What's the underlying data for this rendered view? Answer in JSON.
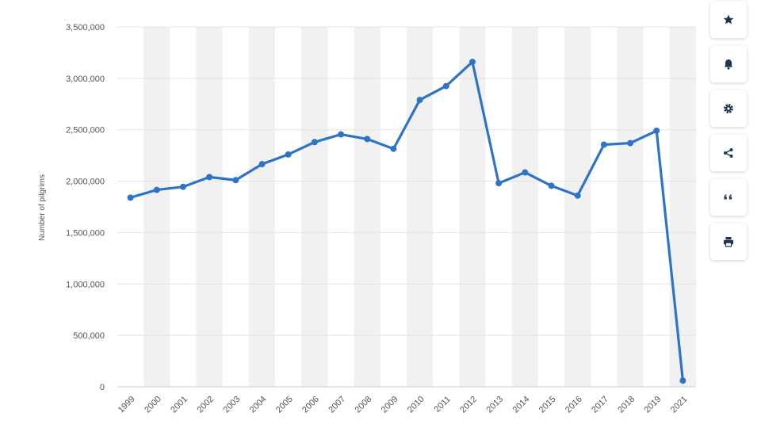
{
  "chart_data": {
    "type": "line",
    "title": "",
    "xlabel": "",
    "ylabel": "Number of pilgrims",
    "ylim": [
      0,
      3500000
    ],
    "yticks": [
      "0",
      "500,000",
      "1,000,000",
      "1,500,000",
      "2,000,000",
      "2,500,000",
      "3,000,000",
      "3,500,000"
    ],
    "ytick_values": [
      0,
      500000,
      1000000,
      1500000,
      2000000,
      2500000,
      3000000,
      3500000
    ],
    "categories": [
      "1999",
      "2000",
      "2001",
      "2002",
      "2003",
      "2004",
      "2005",
      "2006",
      "2007",
      "2008",
      "2009",
      "2010",
      "2011",
      "2012",
      "2013",
      "2014",
      "2015",
      "2016",
      "2017",
      "2018",
      "2019",
      "2021"
    ],
    "series": [
      {
        "values": [
          1840000,
          1915000,
          1945000,
          2040000,
          2010000,
          2165000,
          2260000,
          2380000,
          2455000,
          2410000,
          2315000,
          2790000,
          2925000,
          3160000,
          1980000,
          2085000,
          1955000,
          1860000,
          2355000,
          2370000,
          2490000,
          60000
        ],
        "color": "#2d74c6"
      }
    ],
    "grid": true,
    "legend": "none",
    "alternating_bands_color": "#f1f1f1"
  },
  "toolbar": {
    "buttons": [
      {
        "icon": "star-icon",
        "name": "favorite-button"
      },
      {
        "icon": "bell-icon",
        "name": "notification-button"
      },
      {
        "icon": "gear-icon",
        "name": "settings-button"
      },
      {
        "icon": "share-icon",
        "name": "share-button"
      },
      {
        "icon": "quote-icon",
        "name": "cite-button"
      },
      {
        "icon": "print-icon",
        "name": "print-button"
      }
    ]
  }
}
